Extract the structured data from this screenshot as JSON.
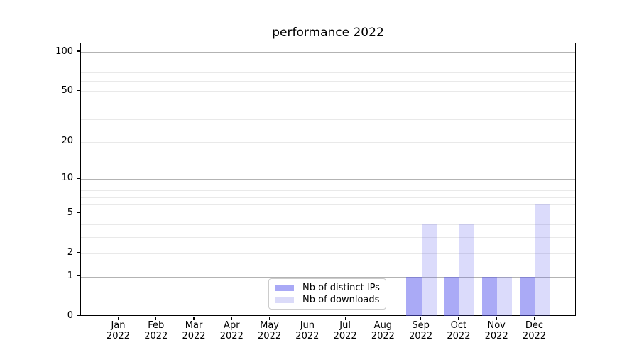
{
  "chart_data": {
    "type": "bar",
    "title": "performance 2022",
    "categories": [
      "Jan 2022",
      "Feb 2022",
      "Mar 2022",
      "Apr 2022",
      "May 2022",
      "Jun 2022",
      "Jul 2022",
      "Aug 2022",
      "Sep 2022",
      "Oct 2022",
      "Nov 2022",
      "Dec 2022"
    ],
    "series": [
      {
        "name": "Nb of distinct IPs",
        "slug": "distinct-ips",
        "color": "#a9a9f6",
        "fill": "rgba(85,85,238,0.5)",
        "values": [
          0,
          0,
          0,
          0,
          0,
          0,
          0,
          0,
          1,
          1,
          1,
          1
        ]
      },
      {
        "name": "Nb of downloads",
        "slug": "downloads",
        "color": "#dbdbf9",
        "fill": "rgba(85,85,238,0.21)",
        "values": [
          0,
          0,
          0,
          0,
          0,
          0,
          0,
          0,
          4,
          4,
          1,
          6
        ]
      }
    ],
    "xlabel": "",
    "ylabel": "",
    "y_scale": "log1p",
    "ylim": [
      0,
      117
    ],
    "y_ticks": [
      0,
      1,
      2,
      5,
      10,
      20,
      50,
      100
    ],
    "y_minor_gridlines": [
      2,
      3,
      4,
      5,
      6,
      7,
      8,
      9,
      20,
      30,
      40,
      50,
      60,
      70,
      80,
      90
    ],
    "y_major_gridlines": [
      1,
      10,
      100
    ],
    "grid": true,
    "legend_position": "lower center inside",
    "colors": {
      "minor_gridline": "#e9e9e9",
      "major_gridline": "#b3b3b3",
      "axis": "#000000",
      "text": "#000000",
      "background": "#ffffff"
    }
  }
}
